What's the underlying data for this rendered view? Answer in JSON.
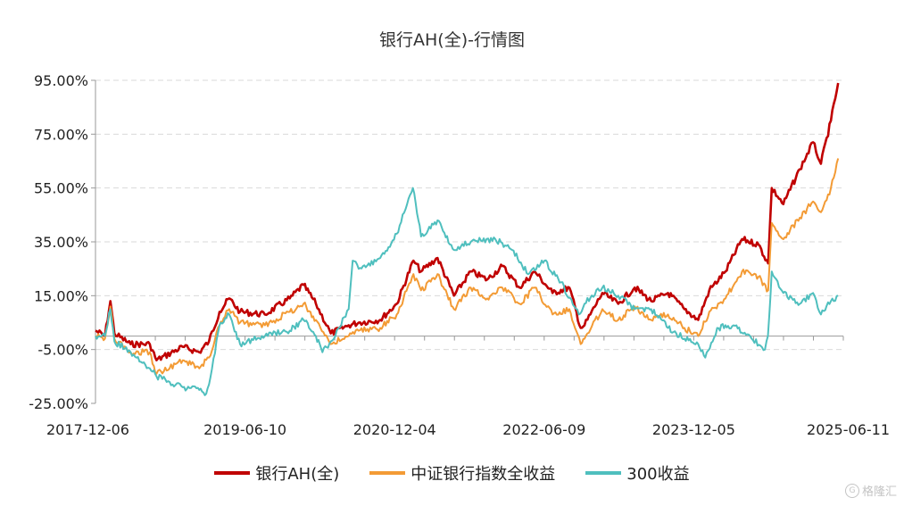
{
  "chart_data": {
    "type": "line",
    "title": "银行AH(全)-行情图",
    "xlabel": "",
    "ylabel": "",
    "ylim": [
      -25,
      95
    ],
    "y_ticks": [
      95,
      75,
      55,
      35,
      15,
      -5,
      -25
    ],
    "y_tick_labels": [
      "95.00%",
      "75.00%",
      "55.00%",
      "35.00%",
      "15.00%",
      "-5.00%",
      "-25.00%"
    ],
    "x_range": [
      "2017-12-01",
      "2025-06-30"
    ],
    "x_tick_labels": [
      "2017-12-06",
      "2019-06-10",
      "2020-12-04",
      "2022-06-09",
      "2023-12-05",
      "2025-06-11"
    ],
    "grid": "horizontal dashed",
    "legend_position": "bottom",
    "series": [
      {
        "name": "银行AH(全)",
        "color": "#c00000",
        "points": [
          [
            "2017-12-01",
            2
          ],
          [
            "2018-01-05",
            0
          ],
          [
            "2018-01-25",
            13
          ],
          [
            "2018-02-09",
            1
          ],
          [
            "2018-04-10",
            -3
          ],
          [
            "2018-06-20",
            -3
          ],
          [
            "2018-07-15",
            -9
          ],
          [
            "2018-10-20",
            -4
          ],
          [
            "2018-12-20",
            -6
          ],
          [
            "2019-01-25",
            -2
          ],
          [
            "2019-03-05",
            9
          ],
          [
            "2019-04-10",
            14
          ],
          [
            "2019-05-20",
            9
          ],
          [
            "2019-08-20",
            8
          ],
          [
            "2019-11-20",
            14
          ],
          [
            "2020-01-10",
            19
          ],
          [
            "2020-02-25",
            12
          ],
          [
            "2020-04-20",
            1
          ],
          [
            "2020-06-25",
            4
          ],
          [
            "2020-08-01",
            5
          ],
          [
            "2020-10-20",
            6
          ],
          [
            "2020-12-20",
            12
          ],
          [
            "2021-02-20",
            28
          ],
          [
            "2021-03-20",
            24
          ],
          [
            "2021-05-20",
            29
          ],
          [
            "2021-07-20",
            15
          ],
          [
            "2021-09-20",
            24
          ],
          [
            "2021-11-20",
            21
          ],
          [
            "2022-01-15",
            26
          ],
          [
            "2022-03-20",
            18
          ],
          [
            "2022-05-15",
            24
          ],
          [
            "2022-07-20",
            16
          ],
          [
            "2022-09-20",
            18
          ],
          [
            "2022-11-01",
            3
          ],
          [
            "2022-11-15",
            4
          ],
          [
            "2023-01-20",
            16
          ],
          [
            "2023-03-20",
            12
          ],
          [
            "2023-05-20",
            18
          ],
          [
            "2023-07-20",
            13
          ],
          [
            "2023-09-20",
            16
          ],
          [
            "2023-11-20",
            10
          ],
          [
            "2024-01-10",
            6
          ],
          [
            "2024-02-20",
            17
          ],
          [
            "2024-04-20",
            24
          ],
          [
            "2024-06-20",
            36
          ],
          [
            "2024-08-20",
            34
          ],
          [
            "2024-09-25",
            27
          ],
          [
            "2024-10-08",
            55
          ],
          [
            "2024-11-20",
            49
          ],
          [
            "2025-01-20",
            62
          ],
          [
            "2025-03-10",
            72
          ],
          [
            "2025-04-08",
            64
          ],
          [
            "2025-05-15",
            80
          ],
          [
            "2025-06-11",
            94
          ]
        ]
      },
      {
        "name": "中证银行指数全收益",
        "color": "#f39b35",
        "points": [
          [
            "2017-12-01",
            0
          ],
          [
            "2018-01-05",
            -1
          ],
          [
            "2018-01-25",
            11
          ],
          [
            "2018-02-09",
            -1
          ],
          [
            "2018-04-10",
            -6
          ],
          [
            "2018-06-20",
            -6
          ],
          [
            "2018-07-15",
            -14
          ],
          [
            "2018-10-20",
            -9
          ],
          [
            "2018-12-20",
            -12
          ],
          [
            "2019-01-25",
            -8
          ],
          [
            "2019-03-05",
            4
          ],
          [
            "2019-04-10",
            10
          ],
          [
            "2019-05-20",
            5
          ],
          [
            "2019-08-20",
            4
          ],
          [
            "2019-11-20",
            9
          ],
          [
            "2020-01-10",
            12
          ],
          [
            "2020-02-25",
            6
          ],
          [
            "2020-04-20",
            -3
          ],
          [
            "2020-06-25",
            0
          ],
          [
            "2020-08-01",
            2
          ],
          [
            "2020-10-20",
            3
          ],
          [
            "2020-12-20",
            8
          ],
          [
            "2021-02-20",
            23
          ],
          [
            "2021-03-20",
            17
          ],
          [
            "2021-05-20",
            23
          ],
          [
            "2021-07-20",
            10
          ],
          [
            "2021-09-20",
            18
          ],
          [
            "2021-11-20",
            14
          ],
          [
            "2022-01-15",
            18
          ],
          [
            "2022-03-20",
            12
          ],
          [
            "2022-05-15",
            18
          ],
          [
            "2022-07-20",
            8
          ],
          [
            "2022-09-20",
            10
          ],
          [
            "2022-11-01",
            -3
          ],
          [
            "2022-11-15",
            -1
          ],
          [
            "2023-01-20",
            10
          ],
          [
            "2023-03-20",
            6
          ],
          [
            "2023-05-20",
            11
          ],
          [
            "2023-07-20",
            6
          ],
          [
            "2023-09-20",
            8
          ],
          [
            "2023-11-20",
            3
          ],
          [
            "2024-01-10",
            0
          ],
          [
            "2024-02-20",
            9
          ],
          [
            "2024-04-20",
            14
          ],
          [
            "2024-06-20",
            24
          ],
          [
            "2024-08-20",
            22
          ],
          [
            "2024-09-25",
            17
          ],
          [
            "2024-10-08",
            42
          ],
          [
            "2024-11-20",
            36
          ],
          [
            "2025-01-20",
            44
          ],
          [
            "2025-03-10",
            50
          ],
          [
            "2025-04-08",
            46
          ],
          [
            "2025-05-15",
            55
          ],
          [
            "2025-06-11",
            66
          ]
        ]
      },
      {
        "name": "300收益",
        "color": "#4fbfbe",
        "points": [
          [
            "2017-12-01",
            0
          ],
          [
            "2018-01-05",
            0
          ],
          [
            "2018-01-25",
            10
          ],
          [
            "2018-02-09",
            -2
          ],
          [
            "2018-04-10",
            -6
          ],
          [
            "2018-06-20",
            -12
          ],
          [
            "2018-07-15",
            -15
          ],
          [
            "2018-10-20",
            -19
          ],
          [
            "2018-12-20",
            -20
          ],
          [
            "2019-01-10",
            -22
          ],
          [
            "2019-01-25",
            -18
          ],
          [
            "2019-03-05",
            4
          ],
          [
            "2019-04-10",
            8
          ],
          [
            "2019-05-20",
            -3
          ],
          [
            "2019-08-20",
            0
          ],
          [
            "2019-11-20",
            2
          ],
          [
            "2020-01-10",
            6
          ],
          [
            "2020-02-25",
            0
          ],
          [
            "2020-03-20",
            -6
          ],
          [
            "2020-04-20",
            -2
          ],
          [
            "2020-06-25",
            10
          ],
          [
            "2020-07-10",
            28
          ],
          [
            "2020-08-01",
            25
          ],
          [
            "2020-10-20",
            29
          ],
          [
            "2020-12-20",
            38
          ],
          [
            "2021-02-18",
            55
          ],
          [
            "2021-03-20",
            37
          ],
          [
            "2021-05-20",
            43
          ],
          [
            "2021-07-20",
            32
          ],
          [
            "2021-09-20",
            35
          ],
          [
            "2021-12-20",
            36
          ],
          [
            "2022-02-20",
            32
          ],
          [
            "2022-04-20",
            23
          ],
          [
            "2022-06-20",
            28
          ],
          [
            "2022-08-20",
            20
          ],
          [
            "2022-10-25",
            8
          ],
          [
            "2022-11-15",
            12
          ],
          [
            "2023-01-20",
            18
          ],
          [
            "2023-03-20",
            15
          ],
          [
            "2023-05-20",
            10
          ],
          [
            "2023-07-20",
            10
          ],
          [
            "2023-09-20",
            3
          ],
          [
            "2023-11-20",
            -1
          ],
          [
            "2024-01-10",
            -3
          ],
          [
            "2024-02-05",
            -8
          ],
          [
            "2024-03-20",
            3
          ],
          [
            "2024-05-20",
            4
          ],
          [
            "2024-07-20",
            0
          ],
          [
            "2024-09-13",
            -5
          ],
          [
            "2024-09-24",
            0
          ],
          [
            "2024-10-08",
            24
          ],
          [
            "2024-11-20",
            16
          ],
          [
            "2025-01-20",
            12
          ],
          [
            "2025-03-10",
            16
          ],
          [
            "2025-04-08",
            8
          ],
          [
            "2025-05-15",
            13
          ],
          [
            "2025-06-11",
            15
          ]
        ]
      }
    ]
  },
  "watermark": {
    "icon": "g-logo-icon",
    "text": "格隆汇"
  }
}
